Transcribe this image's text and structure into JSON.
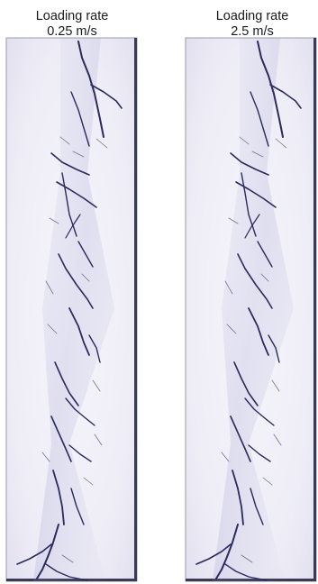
{
  "panels": [
    {
      "title": "Loading rate",
      "subtitle": "0.25 m/s"
    },
    {
      "title": "Loading rate",
      "subtitle": "2.5 m/s"
    }
  ]
}
